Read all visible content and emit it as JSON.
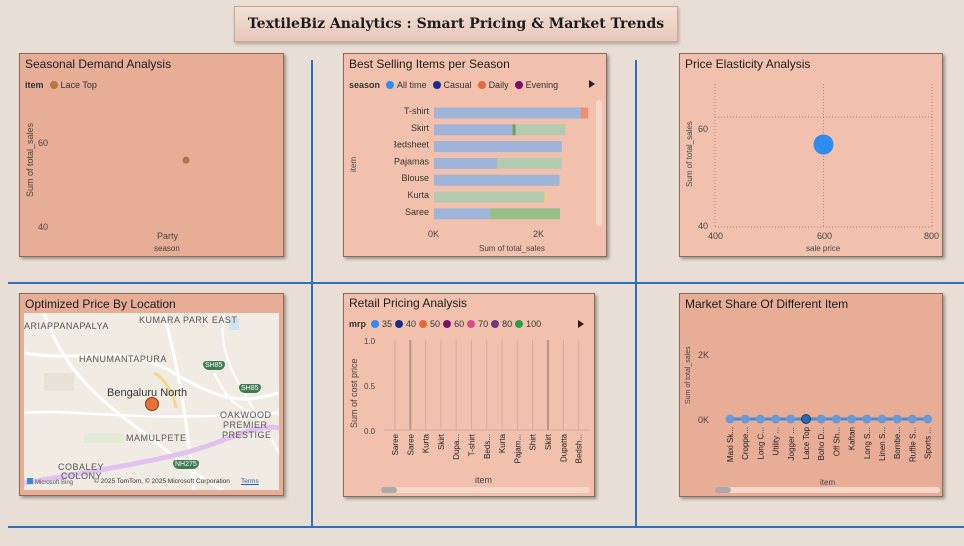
{
  "header": {
    "title": "TextileBiz Analytics : Smart Pricing & Market Trends"
  },
  "seasonal": {
    "title": "Seasonal Demand Analysis",
    "legend_label": "item",
    "legend_item": "Lace Top",
    "legend_color": "#b4763f",
    "ylabel": "Sum of total_sales",
    "xlabel": "season",
    "yticks": [
      "60",
      "40"
    ],
    "category": "Party"
  },
  "bestselling": {
    "title": "Best Selling Items per Season",
    "legend_label": "season",
    "legend_items": [
      {
        "label": "All time",
        "color": "#2e8bf0"
      },
      {
        "label": "Casual",
        "color": "#1c2a8a"
      },
      {
        "label": "Daily",
        "color": "#e06a3a"
      },
      {
        "label": "Evening",
        "color": "#7a0f6a"
      }
    ],
    "ylabel": "item",
    "xlabel": "Sum of total_sales",
    "xticks": [
      "0K",
      "2K"
    ]
  },
  "elasticity": {
    "title": "Price Elasticity Analysis",
    "ylabel": "Sum of total_sales",
    "xlabel": "sale price",
    "xticks": [
      "400",
      "600",
      "800"
    ],
    "yticks": [
      "60",
      "40"
    ]
  },
  "location": {
    "title": "Optimized Price By Location",
    "place": "Bengaluru North",
    "labels": {
      "kumara": "KUMARA PARK EAST",
      "ariappana": "ARIAPPANAPALYA",
      "hanuman": "HANUMANTAPURA",
      "mamulpete": "MAMULPETE",
      "oakwood": "OAKWOOD",
      "premier": "PREMIER",
      "prestige": "PRESTIGE",
      "cobaley": "COBALEY",
      "colony": "COLONY"
    },
    "shields": [
      "SH85",
      "SH85",
      "NH275"
    ],
    "brand": "Microsoft Bing",
    "copyright": "© 2025 TomTom, © 2025 Microsoft Corporation",
    "terms": "Terms"
  },
  "retail": {
    "title": "Retail Pricing Analysis",
    "legend_label": "mrp",
    "legend_items": [
      {
        "label": "35",
        "color": "#2e8bf0"
      },
      {
        "label": "40",
        "color": "#1c2a8a"
      },
      {
        "label": "50",
        "color": "#e06a3a"
      },
      {
        "label": "60",
        "color": "#7a0f6a"
      },
      {
        "label": "70",
        "color": "#d8508a"
      },
      {
        "label": "80",
        "color": "#6a3a7a"
      },
      {
        "label": "100",
        "color": "#2aa046"
      }
    ],
    "ylabel": "Sum of cost price",
    "xlabel": "item",
    "yticks": [
      "1.0",
      "0.5",
      "0.0"
    ]
  },
  "marketshare": {
    "title": "Market Share Of Different Item",
    "ylabel": "Sum of total_sales",
    "xlabel": "item",
    "yticks": [
      "2K",
      "0K"
    ]
  },
  "chart_data": [
    {
      "type": "scatter",
      "title": "Seasonal Demand Analysis",
      "xlabel": "season",
      "ylabel": "Sum of total_sales",
      "categories": [
        "Party"
      ],
      "series": [
        {
          "name": "Lace Top",
          "values": [
            55
          ]
        }
      ],
      "ylim": [
        37,
        68
      ]
    },
    {
      "type": "bar",
      "title": "Best Selling Items per Season",
      "xlabel": "Sum of total_sales",
      "ylabel": "item",
      "categories": [
        "T-shirt",
        "Skirt",
        "Bedsheet",
        "Pajamas",
        "Blouse",
        "Kurta",
        "Saree"
      ],
      "segments": [
        [
          {
            "value": 2450,
            "color": "#9eb4d8"
          },
          {
            "value": 120,
            "color": "#f08c70"
          }
        ],
        [
          {
            "value": 1310,
            "color": "#9eb4d8"
          },
          {
            "value": 50,
            "color": "#6a9e62"
          },
          {
            "value": 830,
            "color": "#b3cbaf"
          }
        ],
        [
          {
            "value": 2130,
            "color": "#9eb4d8"
          }
        ],
        [
          {
            "value": 1050,
            "color": "#9eb4d8"
          },
          {
            "value": 1080,
            "color": "#b3cbaf"
          }
        ],
        [
          {
            "value": 2090,
            "color": "#9eb4d8"
          }
        ],
        [
          {
            "value": 1840,
            "color": "#b3cbaf"
          },
          {
            "value": 30,
            "color": "#f0d080"
          }
        ],
        [
          {
            "value": 930,
            "color": "#9eb4d8"
          },
          {
            "value": 1170,
            "color": "#97c089"
          }
        ]
      ],
      "xlim": [
        0,
        2600
      ]
    },
    {
      "type": "scatter",
      "title": "Price Elasticity Analysis",
      "xlabel": "sale price",
      "ylabel": "Sum of total_sales",
      "x": [
        600
      ],
      "y": [
        55
      ],
      "xlim": [
        400,
        800
      ],
      "ylim": [
        40,
        66
      ]
    },
    {
      "type": "bar",
      "title": "Retail Pricing Analysis",
      "xlabel": "item",
      "ylabel": "Sum of cost price",
      "categories": [
        "Saree",
        "Saree",
        "Kurta",
        "Skirt",
        "Dupa...",
        "T-shirt",
        "Beds...",
        "Kurta",
        "Pajam...",
        "Shirt",
        "Skirt",
        "Dupatta",
        "Bedsh..."
      ],
      "values": [
        1,
        1,
        1,
        1,
        1,
        1,
        1,
        1,
        1,
        1,
        1,
        1,
        1
      ],
      "ylim": [
        0,
        1
      ]
    },
    {
      "type": "line",
      "title": "Market Share Of Different Item",
      "xlabel": "item",
      "ylabel": "Sum of total_sales",
      "categories": [
        "Maxi Sk...",
        "Croppe...",
        "Long C...",
        "Utility ...",
        "Jogger ...",
        "Lace Top",
        "Boho D...",
        "Off Sh...",
        "Kaftan",
        "Long S...",
        "Linen S...",
        "Bombe...",
        "Ruffle S...",
        "Sports ..."
      ],
      "values": [
        0,
        0,
        0,
        0,
        0,
        0,
        0,
        0,
        0,
        0,
        0,
        0,
        0,
        0
      ],
      "ylim": [
        0,
        3000
      ]
    }
  ]
}
